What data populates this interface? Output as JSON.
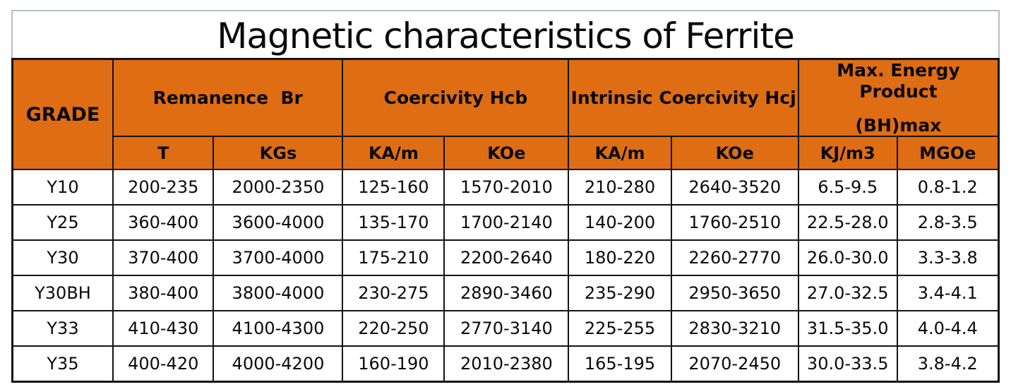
{
  "title": "Magnetic characteristics of Ferrite",
  "colors": {
    "header_bg": "#df6d14",
    "border": "#131313",
    "title_border": "#b6bdc6",
    "text": "#0a0a0a",
    "page_bg": "#ffffff"
  },
  "table": {
    "grade_header": "GRADE",
    "groups": [
      {
        "label": "Remanence  Br"
      },
      {
        "label": "Coercivity Hcb"
      },
      {
        "label": "Intrinsic Coercivity Hcj"
      },
      {
        "label": "Max. Energy Product",
        "label_line2": "(BH)max"
      }
    ],
    "units": [
      "T",
      "KGs",
      "KA/m",
      "KOe",
      "KA/m",
      "KOe",
      "KJ/m3",
      "MGOe"
    ],
    "rows": [
      {
        "grade": "Y10",
        "values": [
          "200-235",
          "2000-2350",
          "125-160",
          "1570-2010",
          "210-280",
          "2640-3520",
          "6.5-9.5",
          "0.8-1.2"
        ]
      },
      {
        "grade": "Y25",
        "values": [
          "360-400",
          "3600-4000",
          "135-170",
          "1700-2140",
          "140-200",
          "1760-2510",
          "22.5-28.0",
          "2.8-3.5"
        ]
      },
      {
        "grade": "Y30",
        "values": [
          "370-400",
          "3700-4000",
          "175-210",
          "2200-2640",
          "180-220",
          "2260-2770",
          "26.0-30.0",
          "3.3-3.8"
        ]
      },
      {
        "grade": "Y30BH",
        "values": [
          "380-400",
          "3800-4000",
          "230-275",
          "2890-3460",
          "235-290",
          "2950-3650",
          "27.0-32.5",
          "3.4-4.1"
        ]
      },
      {
        "grade": "Y33",
        "values": [
          "410-430",
          "4100-4300",
          "220-250",
          "2770-3140",
          "225-255",
          "2830-3210",
          "31.5-35.0",
          "4.0-4.4"
        ]
      },
      {
        "grade": "Y35",
        "values": [
          "400-420",
          "4000-4200",
          "160-190",
          "2010-2380",
          "165-195",
          "2070-2450",
          "30.0-33.5",
          "3.8-4.2"
        ]
      }
    ]
  },
  "chart_data": {
    "type": "table",
    "title": "Magnetic characteristics of Ferrite",
    "columns": [
      "GRADE",
      "Remanence Br T",
      "Remanence Br KGs",
      "Coercivity Hcb KA/m",
      "Coercivity Hcb KOe",
      "Intrinsic Coercivity Hcj KA/m",
      "Intrinsic Coercivity Hcj KOe",
      "Max. Energy Product (BH)max KJ/m3",
      "Max. Energy Product (BH)max MGOe"
    ],
    "rows": [
      [
        "Y10",
        "200-235",
        "2000-2350",
        "125-160",
        "1570-2010",
        "210-280",
        "2640-3520",
        "6.5-9.5",
        "0.8-1.2"
      ],
      [
        "Y25",
        "360-400",
        "3600-4000",
        "135-170",
        "1700-2140",
        "140-200",
        "1760-2510",
        "22.5-28.0",
        "2.8-3.5"
      ],
      [
        "Y30",
        "370-400",
        "3700-4000",
        "175-210",
        "2200-2640",
        "180-220",
        "2260-2770",
        "26.0-30.0",
        "3.3-3.8"
      ],
      [
        "Y30BH",
        "380-400",
        "3800-4000",
        "230-275",
        "2890-3460",
        "235-290",
        "2950-3650",
        "27.0-32.5",
        "3.4-4.1"
      ],
      [
        "Y33",
        "410-430",
        "4100-4300",
        "220-250",
        "2770-3140",
        "225-255",
        "2830-3210",
        "31.5-35.0",
        "4.0-4.4"
      ],
      [
        "Y35",
        "400-420",
        "4000-4200",
        "160-190",
        "2010-2380",
        "165-195",
        "2070-2450",
        "30.0-33.5",
        "3.8-4.2"
      ]
    ]
  }
}
